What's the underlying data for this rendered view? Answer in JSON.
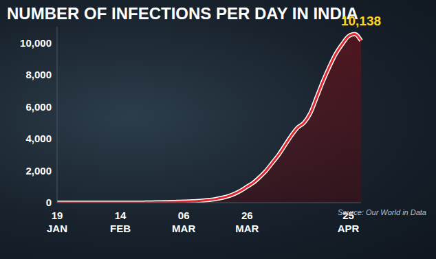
{
  "chart_data": {
    "type": "area",
    "title": "NUMBER OF INFECTIONS PER DAY IN INDIA",
    "source": "Source: Our World in Data",
    "annotation": "10,138",
    "categories": [
      "19 JAN",
      null,
      null,
      null,
      null,
      null,
      null,
      null,
      null,
      null,
      "14 FEB",
      null,
      null,
      null,
      null,
      null,
      null,
      null,
      null,
      null,
      "06 MAR",
      null,
      null,
      null,
      null,
      null,
      null,
      null,
      null,
      null,
      "26 MAR",
      null,
      null,
      null,
      null,
      null,
      null,
      null,
      null,
      null,
      null,
      null,
      null,
      null,
      null,
      null,
      "25 APR",
      null,
      null
    ],
    "values": [
      0,
      0,
      0,
      0,
      0,
      0,
      0,
      0,
      0,
      0,
      0,
      0,
      0,
      0,
      10,
      15,
      20,
      30,
      40,
      50,
      60,
      80,
      100,
      130,
      170,
      220,
      300,
      400,
      550,
      750,
      1000,
      1250,
      1600,
      2000,
      2500,
      3000,
      3600,
      4200,
      4700,
      5000,
      5600,
      6600,
      7600,
      8500,
      9300,
      9900,
      10400,
      10550,
      10138
    ],
    "color": "#e2262c",
    "ylim": [
      0,
      11000
    ],
    "yticks": [
      0,
      {
        "value": 2000,
        "label": "2,000"
      },
      {
        "value": 4000,
        "label": "4,000"
      },
      {
        "value": 6000,
        "label": "6,000"
      },
      {
        "value": 8000,
        "label": "8,000"
      },
      {
        "value": 10000,
        "label": "10,000"
      }
    ],
    "grid": false
  }
}
